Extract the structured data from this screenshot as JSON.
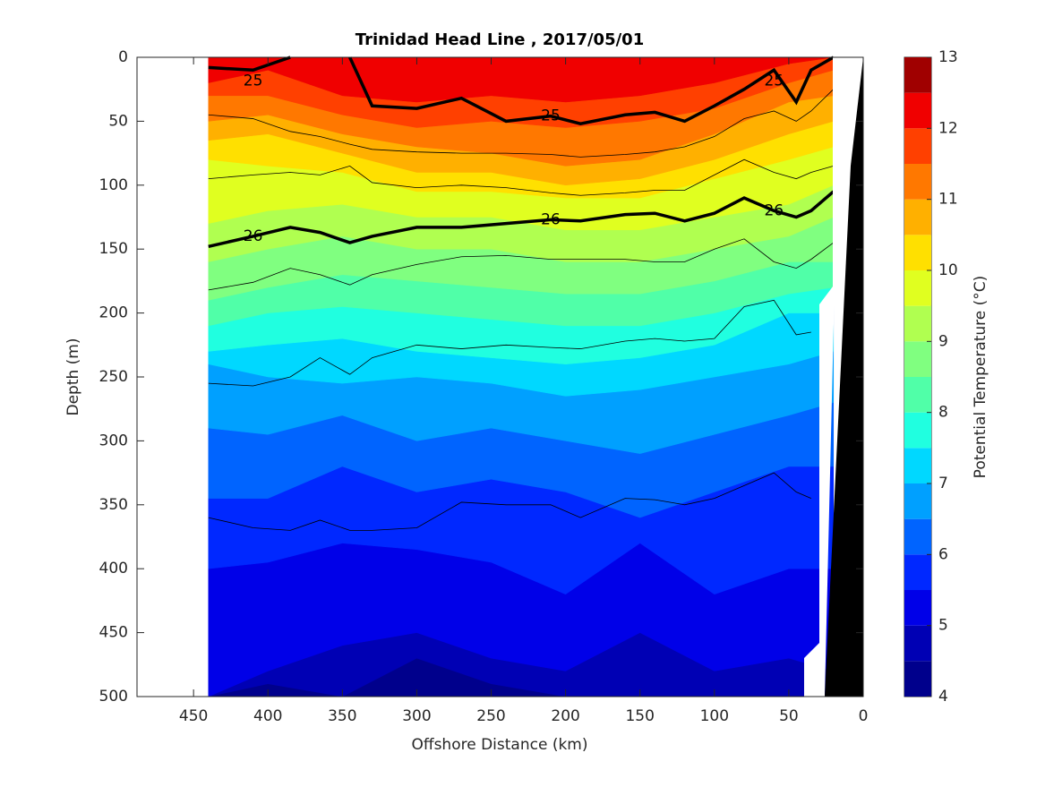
{
  "chart_data": {
    "type": "contourf",
    "title": "Trinidad Head Line , 2017/05/01",
    "xlabel": "Offshore Distance (km)",
    "ylabel": "Depth (m)",
    "xlim": [
      488,
      0
    ],
    "xticks": [
      450,
      400,
      350,
      300,
      250,
      200,
      150,
      100,
      50,
      0
    ],
    "ylim": [
      0,
      500
    ],
    "yticks": [
      0,
      50,
      100,
      150,
      200,
      250,
      300,
      350,
      400,
      450,
      500
    ],
    "x": [
      440,
      400,
      350,
      300,
      250,
      200,
      150,
      100,
      50,
      20
    ],
    "isotherms": [
      {
        "level": 4.5,
        "depths": [
          500,
          490,
          500,
          470,
          490,
          500,
          500,
          500,
          500,
          500
        ]
      },
      {
        "level": 5,
        "depths": [
          500,
          480,
          460,
          450,
          470,
          480,
          450,
          480,
          470,
          480
        ]
      },
      {
        "level": 5.5,
        "depths": [
          400,
          395,
          380,
          385,
          395,
          420,
          380,
          420,
          400,
          400
        ]
      },
      {
        "level": 6,
        "depths": [
          345,
          345,
          320,
          340,
          330,
          340,
          360,
          340,
          320,
          320
        ]
      },
      {
        "level": 6.5,
        "depths": [
          290,
          295,
          280,
          300,
          290,
          300,
          310,
          295,
          280,
          270
        ]
      },
      {
        "level": 7,
        "depths": [
          240,
          250,
          255,
          250,
          255,
          265,
          260,
          250,
          240,
          230
        ]
      },
      {
        "level": 7.5,
        "depths": [
          230,
          225,
          220,
          230,
          235,
          240,
          235,
          225,
          200,
          200
        ]
      },
      {
        "level": 8,
        "depths": [
          210,
          200,
          195,
          200,
          205,
          210,
          210,
          200,
          185,
          180
        ]
      },
      {
        "level": 8.5,
        "depths": [
          190,
          180,
          170,
          175,
          180,
          185,
          185,
          175,
          160,
          160
        ]
      },
      {
        "level": 9,
        "depths": [
          160,
          150,
          140,
          150,
          150,
          160,
          160,
          150,
          140,
          125
        ]
      },
      {
        "level": 9.5,
        "depths": [
          130,
          120,
          115,
          125,
          125,
          135,
          135,
          125,
          115,
          100
        ]
      },
      {
        "level": 10,
        "depths": [
          80,
          85,
          90,
          105,
          105,
          110,
          110,
          95,
          80,
          70
        ]
      },
      {
        "level": 10.5,
        "depths": [
          65,
          60,
          75,
          90,
          90,
          100,
          95,
          80,
          60,
          50
        ]
      },
      {
        "level": 11,
        "depths": [
          50,
          45,
          60,
          70,
          75,
          85,
          80,
          60,
          35,
          30
        ]
      },
      {
        "level": 11.5,
        "depths": [
          30,
          30,
          45,
          55,
          50,
          55,
          50,
          40,
          20,
          10
        ]
      },
      {
        "level": 12,
        "depths": [
          20,
          10,
          30,
          35,
          30,
          35,
          30,
          20,
          5,
          0
        ]
      }
    ],
    "contour_x": [
      440,
      410,
      385,
      365,
      345,
      330,
      300,
      270,
      240,
      210,
      190,
      160,
      140,
      120,
      100,
      80,
      60,
      45,
      35,
      20
    ],
    "contours": [
      {
        "label": "25",
        "depths": [
          8,
          10,
          0,
          null,
          0,
          38,
          40,
          32,
          50,
          46,
          52,
          45,
          43,
          50,
          38,
          25,
          10,
          35,
          10,
          0
        ]
      },
      {
        "label": "26",
        "depths": [
          148,
          140,
          133,
          137,
          145,
          140,
          133,
          133,
          130,
          127,
          128,
          123,
          122,
          128,
          122,
          110,
          120,
          125,
          120,
          105
        ]
      }
    ],
    "thin_contours": [
      {
        "depths": [
          45,
          48,
          58,
          62,
          68,
          72,
          74,
          75,
          75,
          76,
          78,
          76,
          74,
          70,
          62,
          48,
          42,
          50,
          42,
          25
        ]
      },
      {
        "depths": [
          95,
          92,
          90,
          92,
          85,
          98,
          102,
          100,
          102,
          106,
          108,
          106,
          104,
          104,
          92,
          80,
          90,
          95,
          90,
          85
        ]
      },
      {
        "depths": [
          182,
          176,
          165,
          170,
          178,
          170,
          162,
          156,
          155,
          158,
          158,
          158,
          160,
          160,
          150,
          142,
          160,
          165,
          158,
          145
        ]
      },
      {
        "depths": [
          255,
          257,
          250,
          235,
          248,
          235,
          225,
          228,
          225,
          227,
          228,
          222,
          220,
          222,
          220,
          195,
          190,
          217,
          215,
          null
        ]
      },
      {
        "depths": [
          360,
          368,
          370,
          362,
          370,
          370,
          368,
          348,
          350,
          350,
          360,
          345,
          346,
          350,
          345,
          335,
          325,
          340,
          345,
          null
        ]
      }
    ],
    "colorbar": {
      "label": "Potential Temperature (°C)",
      "levels": [
        4,
        4.5,
        5,
        5.5,
        6,
        6.5,
        7,
        7.5,
        8,
        8.5,
        9,
        9.5,
        10,
        10.5,
        11,
        11.5,
        12,
        12.5,
        13
      ],
      "colors": [
        "#00008c",
        "#0000b4",
        "#0000e8",
        "#0028ff",
        "#0064ff",
        "#00a0ff",
        "#00d8ff",
        "#20ffe0",
        "#50ffa8",
        "#80ff80",
        "#b0ff50",
        "#e0ff20",
        "#ffe000",
        "#ffb000",
        "#ff7800",
        "#ff4000",
        "#f00000",
        "#a00000"
      ],
      "ticks": [
        4,
        5,
        6,
        7,
        8,
        9,
        10,
        11,
        12,
        13
      ]
    }
  }
}
